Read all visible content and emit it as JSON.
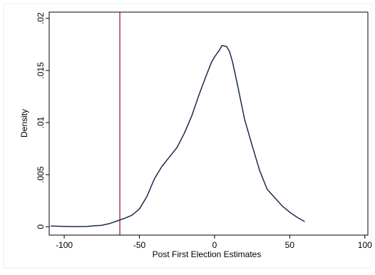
{
  "chart_data": {
    "type": "line",
    "title": "",
    "xlabel": "Post First Election Estimates",
    "ylabel": "Density",
    "xlim": [
      -110,
      102
    ],
    "ylim": [
      -0.0008,
      0.0206
    ],
    "x_ticks": [
      -100,
      -50,
      0,
      50,
      100
    ],
    "y_ticks": [
      0,
      0.005,
      0.01,
      0.015,
      0.02
    ],
    "x_tick_labels": [
      "-100",
      "-50",
      "0",
      "50",
      "100"
    ],
    "y_tick_labels": [
      "0",
      ".005",
      ".01",
      ".015",
      ".02"
    ],
    "grid": false,
    "legend": "none",
    "series": [
      {
        "color": "#1a2b4c",
        "x": [
          -109,
          -100,
          -95,
          -90,
          -85,
          -80,
          -75,
          -70,
          -65,
          -60,
          -55,
          -50,
          -45,
          -40,
          -35,
          -30,
          -25,
          -20,
          -15,
          -10,
          -5,
          -2,
          0,
          3,
          5,
          8,
          10,
          12,
          15,
          20,
          25,
          30,
          35,
          40,
          45,
          50,
          55,
          60
        ],
        "values": [
          7e-05,
          4e-05,
          2e-05,
          2e-05,
          3e-05,
          0.0001,
          0.00014,
          0.0003,
          0.00055,
          0.0008,
          0.0011,
          0.0017,
          0.0029,
          0.0046,
          0.0058,
          0.0067,
          0.0076,
          0.009,
          0.0107,
          0.0128,
          0.0147,
          0.0158,
          0.0163,
          0.0169,
          0.0174,
          0.0173,
          0.0168,
          0.0158,
          0.0138,
          0.0103,
          0.0078,
          0.0054,
          0.0036,
          0.0028,
          0.002,
          0.0014,
          0.0009,
          0.0005
        ]
      }
    ],
    "reference_line": {
      "x": -63,
      "color": "#a0154a"
    }
  }
}
